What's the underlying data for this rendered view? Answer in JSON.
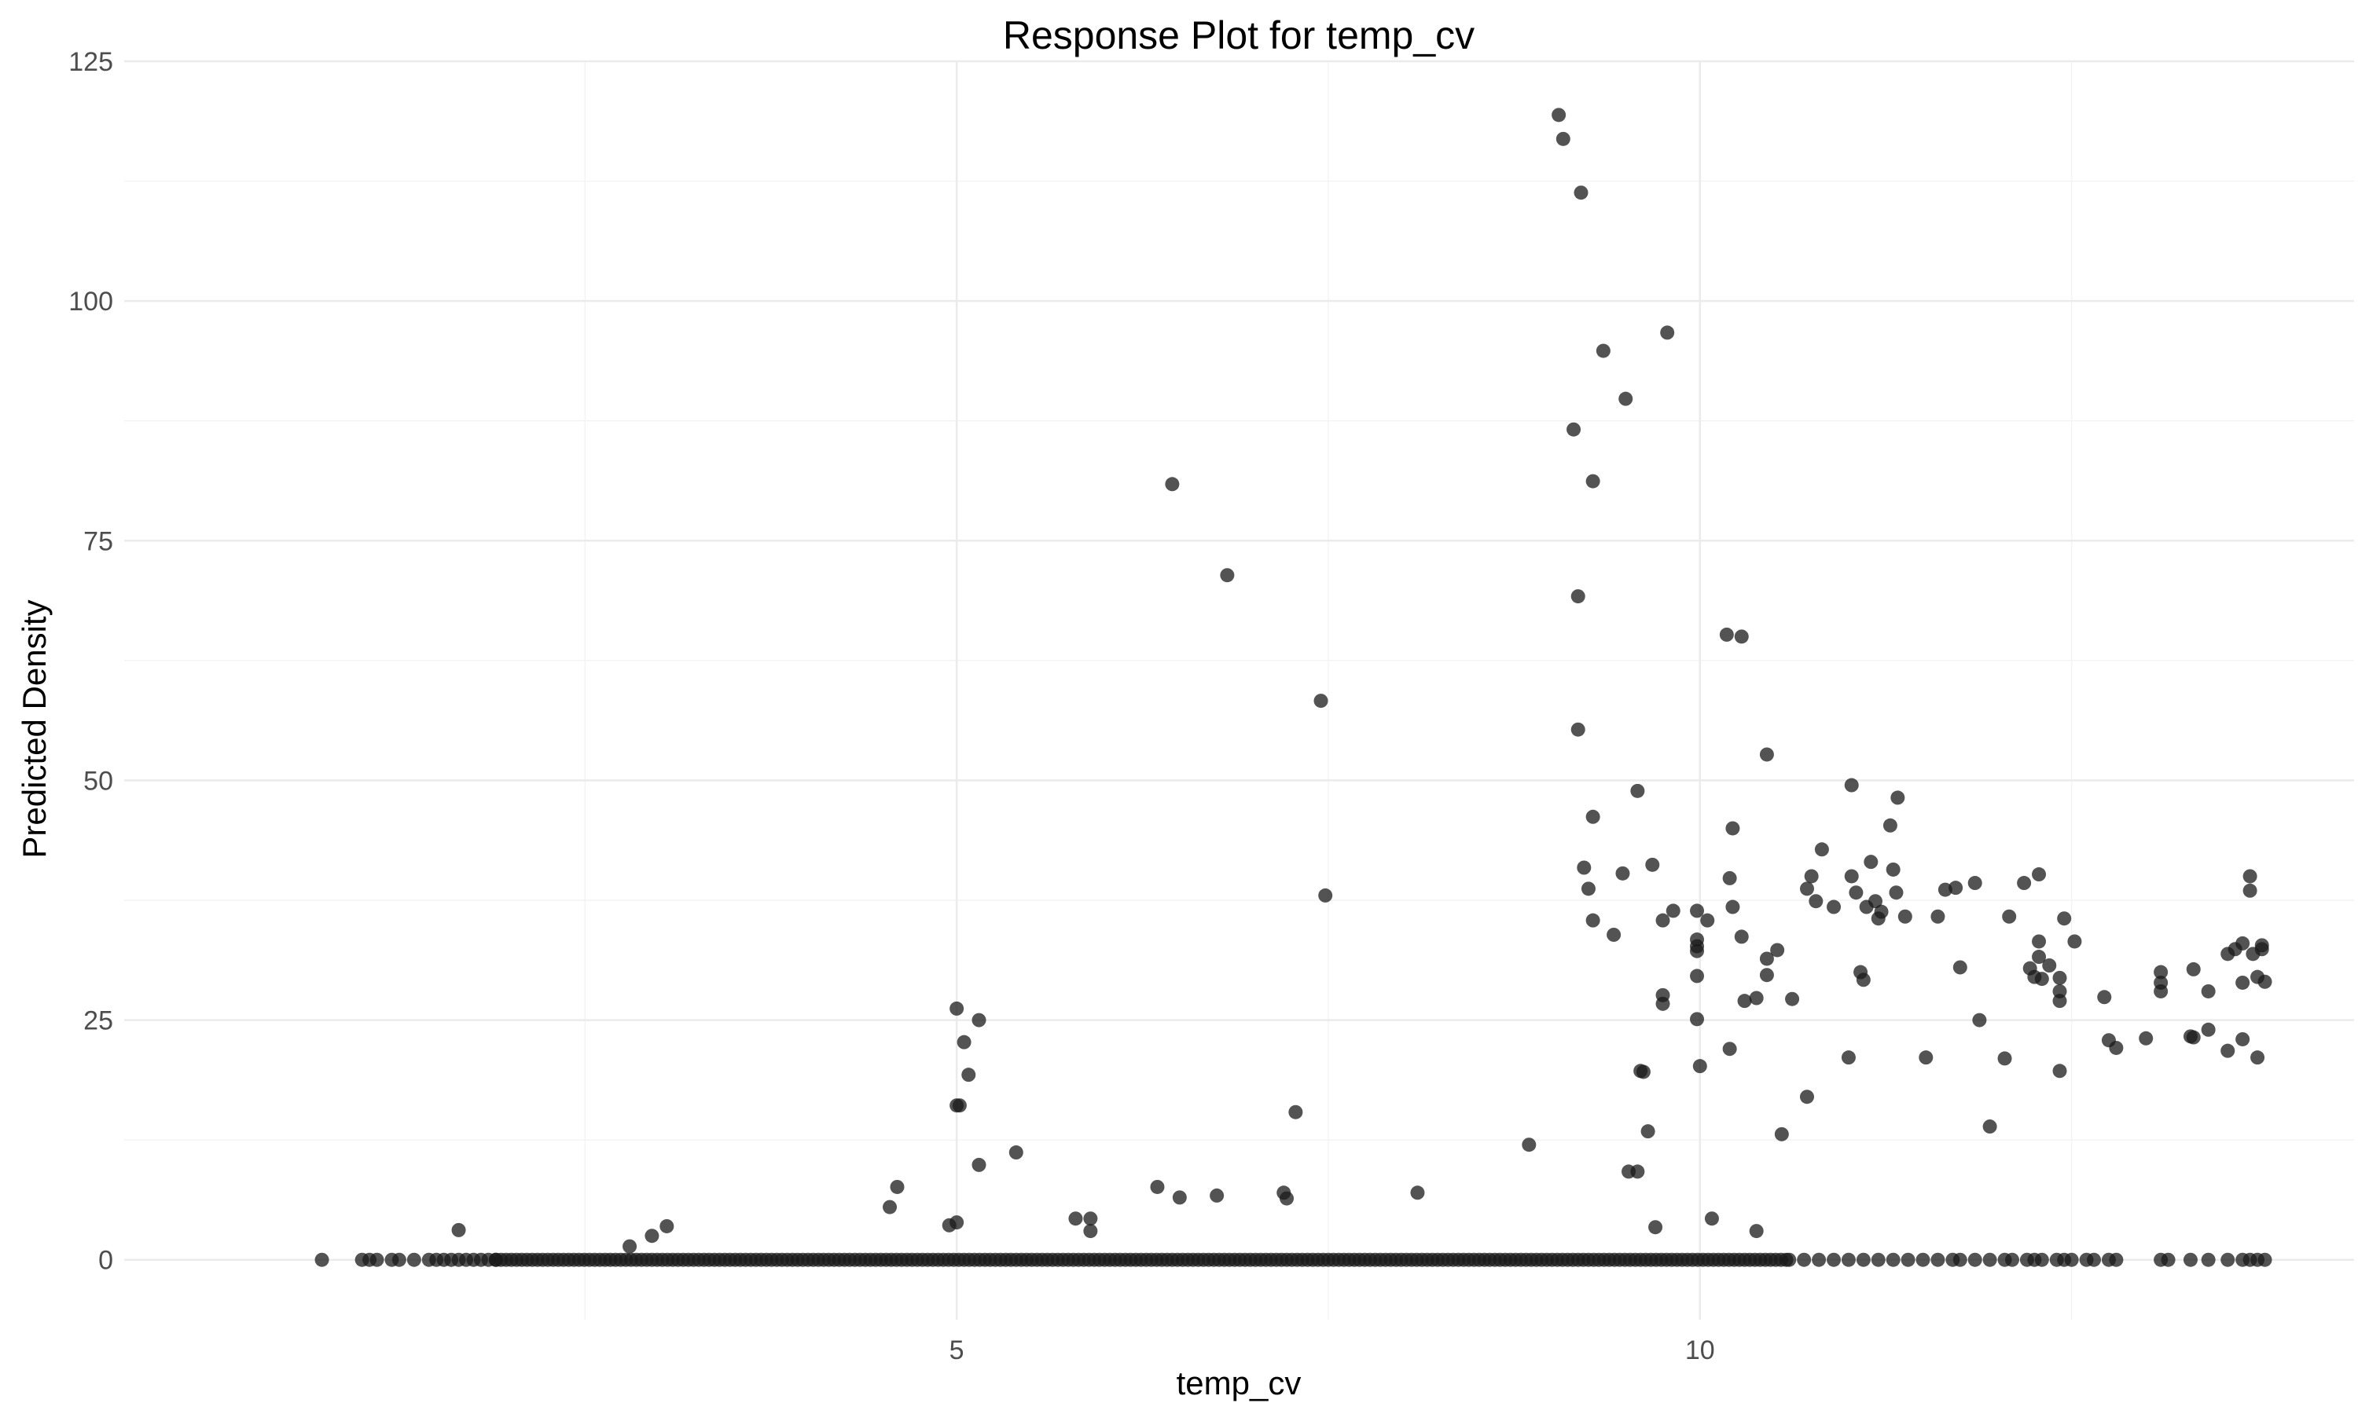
{
  "chart_data": {
    "type": "scatter",
    "title": "Response Plot for temp_cv",
    "xlabel": "temp_cv",
    "ylabel": "Predicted Density",
    "xlim": [
      -0.6,
      14.4
    ],
    "ylim": [
      -6.25,
      125
    ],
    "x_ticks": [
      5,
      10
    ],
    "y_ticks": [
      0,
      25,
      50,
      75,
      100,
      125
    ],
    "grid": true,
    "legend": "none",
    "point_color": "#1a1a1a",
    "series": [
      {
        "points": [
          [
            0.73,
            0
          ],
          [
            1.0,
            0
          ],
          [
            1.05,
            0
          ],
          [
            1.1,
            0
          ],
          [
            1.2,
            0
          ],
          [
            1.25,
            0
          ],
          [
            1.35,
            0
          ],
          [
            1.45,
            0
          ],
          [
            1.5,
            0
          ],
          [
            1.55,
            0
          ],
          [
            1.6,
            0
          ],
          [
            1.65,
            0
          ],
          [
            1.7,
            0
          ],
          [
            1.75,
            0
          ],
          [
            1.8,
            0
          ],
          [
            1.85,
            0
          ],
          [
            1.9,
            0
          ],
          [
            1.65,
            3.1
          ],
          [
            2.8,
            1.4
          ],
          [
            2.95,
            2.5
          ],
          [
            3.05,
            3.5
          ],
          [
            4.55,
            5.5
          ],
          [
            4.6,
            7.6
          ],
          [
            4.95,
            3.6
          ],
          [
            5.0,
            3.9
          ],
          [
            5.0,
            26.2
          ],
          [
            5.05,
            22.7
          ],
          [
            5.0,
            16.1
          ],
          [
            5.02,
            16.1
          ],
          [
            5.08,
            19.3
          ],
          [
            5.15,
            25.0
          ],
          [
            5.15,
            9.9
          ],
          [
            5.4,
            11.2
          ],
          [
            5.8,
            4.3
          ],
          [
            5.9,
            4.3
          ],
          [
            5.9,
            3.0
          ],
          [
            6.35,
            7.6
          ],
          [
            6.5,
            6.5
          ],
          [
            6.75,
            6.7
          ],
          [
            7.2,
            7.0
          ],
          [
            7.22,
            6.4
          ],
          [
            7.28,
            15.4
          ],
          [
            6.45,
            80.9
          ],
          [
            6.82,
            71.4
          ],
          [
            7.45,
            58.3
          ],
          [
            7.48,
            38.0
          ],
          [
            8.1,
            7.0
          ],
          [
            8.85,
            12.0
          ],
          [
            9.05,
            119.4
          ],
          [
            9.08,
            116.9
          ],
          [
            9.2,
            111.3
          ],
          [
            9.35,
            94.8
          ],
          [
            9.5,
            89.8
          ],
          [
            9.78,
            96.7
          ],
          [
            9.15,
            86.6
          ],
          [
            9.28,
            81.2
          ],
          [
            9.18,
            69.2
          ],
          [
            9.18,
            55.3
          ],
          [
            9.22,
            40.9
          ],
          [
            9.25,
            38.7
          ],
          [
            9.28,
            46.2
          ],
          [
            9.28,
            35.4
          ],
          [
            9.42,
            33.9
          ],
          [
            9.48,
            40.3
          ],
          [
            9.58,
            48.9
          ],
          [
            9.6,
            19.7
          ],
          [
            9.62,
            19.6
          ],
          [
            9.68,
            41.2
          ],
          [
            9.75,
            35.4
          ],
          [
            9.75,
            27.6
          ],
          [
            9.75,
            26.7
          ],
          [
            9.82,
            36.4
          ],
          [
            9.52,
            9.2
          ],
          [
            9.58,
            9.2
          ],
          [
            9.65,
            13.4
          ],
          [
            9.7,
            3.4
          ],
          [
            9.98,
            36.4
          ],
          [
            9.98,
            33.4
          ],
          [
            9.98,
            32.7
          ],
          [
            9.98,
            32.2
          ],
          [
            9.98,
            29.6
          ],
          [
            9.98,
            25.1
          ],
          [
            10.0,
            20.2
          ],
          [
            10.05,
            35.4
          ],
          [
            10.08,
            4.3
          ],
          [
            10.18,
            65.2
          ],
          [
            10.28,
            65.0
          ],
          [
            10.2,
            39.8
          ],
          [
            10.22,
            45.0
          ],
          [
            10.22,
            36.8
          ],
          [
            10.2,
            22.0
          ],
          [
            10.28,
            33.7
          ],
          [
            10.3,
            27.0
          ],
          [
            10.38,
            27.3
          ],
          [
            10.45,
            52.7
          ],
          [
            10.45,
            31.4
          ],
          [
            10.45,
            29.7
          ],
          [
            10.52,
            32.3
          ],
          [
            10.55,
            13.1
          ],
          [
            10.62,
            27.2
          ],
          [
            10.38,
            3.0
          ],
          [
            10.72,
            38.7
          ],
          [
            10.75,
            40.0
          ],
          [
            10.78,
            37.4
          ],
          [
            10.82,
            42.8
          ],
          [
            10.72,
            17.0
          ],
          [
            10.9,
            36.8
          ],
          [
            11.0,
            21.1
          ],
          [
            11.02,
            49.5
          ],
          [
            11.02,
            40.0
          ],
          [
            11.05,
            38.3
          ],
          [
            11.08,
            30.0
          ],
          [
            11.1,
            29.2
          ],
          [
            11.12,
            36.8
          ],
          [
            11.15,
            41.5
          ],
          [
            11.18,
            37.4
          ],
          [
            11.2,
            35.6
          ],
          [
            11.22,
            36.3
          ],
          [
            11.28,
            45.3
          ],
          [
            11.3,
            40.7
          ],
          [
            11.32,
            38.3
          ],
          [
            11.33,
            48.2
          ],
          [
            11.38,
            35.8
          ],
          [
            11.52,
            21.1
          ],
          [
            11.6,
            35.8
          ],
          [
            11.65,
            38.6
          ],
          [
            11.72,
            38.8
          ],
          [
            11.75,
            30.5
          ],
          [
            11.85,
            39.3
          ],
          [
            11.88,
            25.0
          ],
          [
            11.95,
            13.9
          ],
          [
            12.05,
            21.0
          ],
          [
            12.08,
            35.8
          ],
          [
            12.18,
            39.3
          ],
          [
            12.22,
            30.4
          ],
          [
            12.28,
            40.2
          ],
          [
            12.28,
            33.2
          ],
          [
            12.25,
            29.5
          ],
          [
            12.28,
            31.6
          ],
          [
            12.3,
            29.3
          ],
          [
            12.35,
            30.7
          ],
          [
            12.42,
            29.4
          ],
          [
            12.42,
            28.0
          ],
          [
            12.45,
            35.6
          ],
          [
            12.42,
            27.0
          ],
          [
            12.42,
            19.7
          ],
          [
            12.52,
            33.2
          ],
          [
            12.72,
            27.4
          ],
          [
            12.75,
            22.9
          ],
          [
            12.8,
            22.1
          ],
          [
            13.0,
            23.1
          ],
          [
            13.1,
            30.0
          ],
          [
            13.1,
            28.9
          ],
          [
            13.1,
            28.0
          ],
          [
            13.32,
            30.3
          ],
          [
            13.3,
            23.3
          ],
          [
            13.32,
            23.2
          ],
          [
            13.42,
            28.0
          ],
          [
            13.42,
            24.0
          ],
          [
            13.55,
            21.8
          ],
          [
            13.55,
            31.9
          ],
          [
            13.6,
            32.4
          ],
          [
            13.65,
            28.9
          ],
          [
            13.65,
            23.0
          ],
          [
            13.65,
            33.0
          ],
          [
            13.7,
            40.0
          ],
          [
            13.7,
            38.5
          ],
          [
            13.72,
            31.9
          ],
          [
            13.75,
            29.5
          ],
          [
            13.78,
            32.4
          ],
          [
            13.78,
            32.8
          ],
          [
            13.75,
            21.1
          ],
          [
            13.8,
            29.0
          ],
          [
            10.6,
            0
          ],
          [
            10.7,
            0
          ],
          [
            10.8,
            0
          ],
          [
            10.9,
            0
          ],
          [
            11.0,
            0
          ],
          [
            11.1,
            0
          ],
          [
            11.2,
            0
          ],
          [
            11.3,
            0
          ],
          [
            11.4,
            0
          ],
          [
            11.5,
            0
          ],
          [
            11.6,
            0
          ],
          [
            11.7,
            0
          ],
          [
            11.75,
            0
          ],
          [
            11.85,
            0
          ],
          [
            11.95,
            0
          ],
          [
            12.05,
            0
          ],
          [
            12.1,
            0
          ],
          [
            12.2,
            0
          ],
          [
            12.25,
            0
          ],
          [
            12.3,
            0
          ],
          [
            12.4,
            0
          ],
          [
            12.45,
            0
          ],
          [
            12.5,
            0
          ],
          [
            12.6,
            0
          ],
          [
            12.65,
            0
          ],
          [
            12.75,
            0
          ],
          [
            12.8,
            0
          ],
          [
            13.1,
            0
          ],
          [
            13.15,
            0
          ],
          [
            13.3,
            0
          ],
          [
            13.42,
            0
          ],
          [
            13.55,
            0
          ],
          [
            13.65,
            0
          ],
          [
            13.7,
            0
          ],
          [
            13.75,
            0
          ],
          [
            13.8,
            0
          ]
        ],
        "dense_zero_band": [
          1.9,
          10.6
        ]
      }
    ]
  }
}
